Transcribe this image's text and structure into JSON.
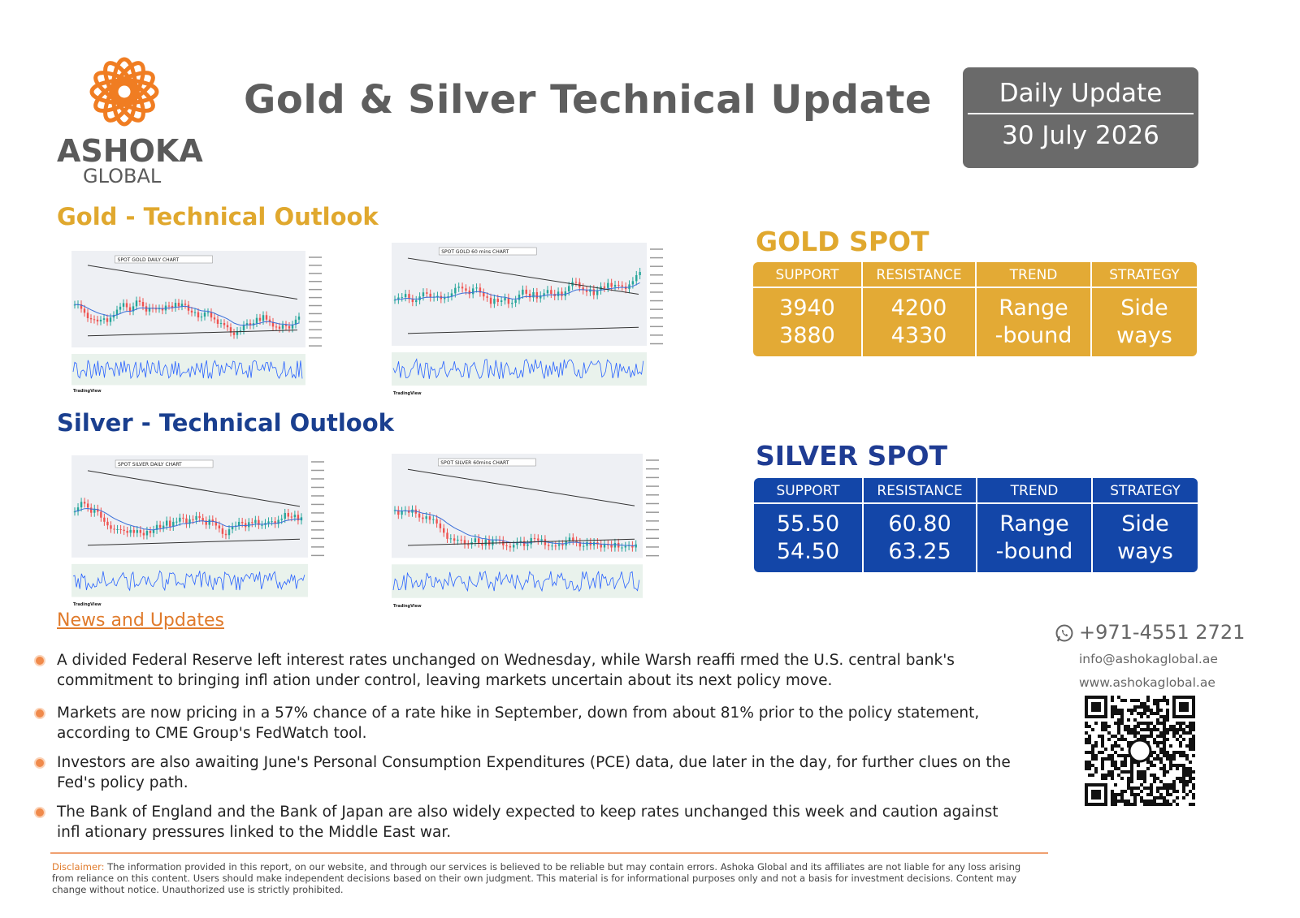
{
  "header": {
    "logo": {
      "name": "ASHOKA",
      "sub": "GLOBAL"
    },
    "title": "Gold & Silver Technical Update",
    "badge": {
      "label": "Daily Update",
      "date": "30 July 2026"
    }
  },
  "gold": {
    "heading": "Gold - Technical Outlook",
    "charts": [
      {
        "title": "SPOT GOLD DAILY CHART"
      },
      {
        "title": "SPOT GOLD 60 mins CHART"
      }
    ],
    "spot": {
      "title": "GOLD SPOT",
      "columns": [
        "SUPPORT",
        "RESISTANCE",
        "TREND",
        "STRATEGY"
      ],
      "cells": [
        [
          "3940",
          "3880"
        ],
        [
          "4200",
          "4330"
        ],
        [
          "Range",
          "-bound"
        ],
        [
          "Side",
          "ways"
        ]
      ]
    }
  },
  "silver": {
    "heading": "Silver - Technical Outlook",
    "charts": [
      {
        "title": "SPOT SILVER DAILY CHART"
      },
      {
        "title": "SPOT SILVER 60mins CHART"
      }
    ],
    "spot": {
      "title": "SILVER SPOT",
      "columns": [
        "SUPPORT",
        "RESISTANCE",
        "TREND",
        "STRATEGY"
      ],
      "cells": [
        [
          "55.50",
          "54.50"
        ],
        [
          "60.80",
          "63.25"
        ],
        [
          "Range",
          "-bound"
        ],
        [
          "Side",
          "ways"
        ]
      ]
    }
  },
  "chart_source": "TradingView",
  "news": {
    "heading": "News and Updates",
    "items": [
      "A divided Federal Reserve left interest rates unchanged on Wednesday, while Warsh reaffi rmed the U.S. central bank's commitment to bringing infl ation under control, leaving markets uncertain about its next policy move.",
      "Markets are now pricing in a 57% chance of a rate hike in September, down from about 81% prior to the policy statement, according to CME Group's FedWatch tool.",
      "Investors are also awaiting June's Personal Consumption Expenditures (PCE) data, due later in the day, for further clues on the Fed's policy path.",
      "The Bank of England and the Bank of Japan are also widely expected to keep rates unchanged this week and caution against infl ationary pressures linked to the Middle East war."
    ]
  },
  "contact": {
    "phone": "+971-4551 2721",
    "email": "info@ashokaglobal.ae",
    "website": "www.ashokaglobal.ae"
  },
  "disclaimer": {
    "label": "Disclaimer:",
    "text": "The information provided in this report, on our website, and through our services is believed to be reliable but may contain errors. Ashoka Global and its affiliates are not liable for any loss arising from reliance on this content. Users should make independent decisions based on their own judgment. This material is for informational purposes only and not a basis for investment decisions. Content may change without notice. Unauthorized use is strictly prohibited."
  }
}
